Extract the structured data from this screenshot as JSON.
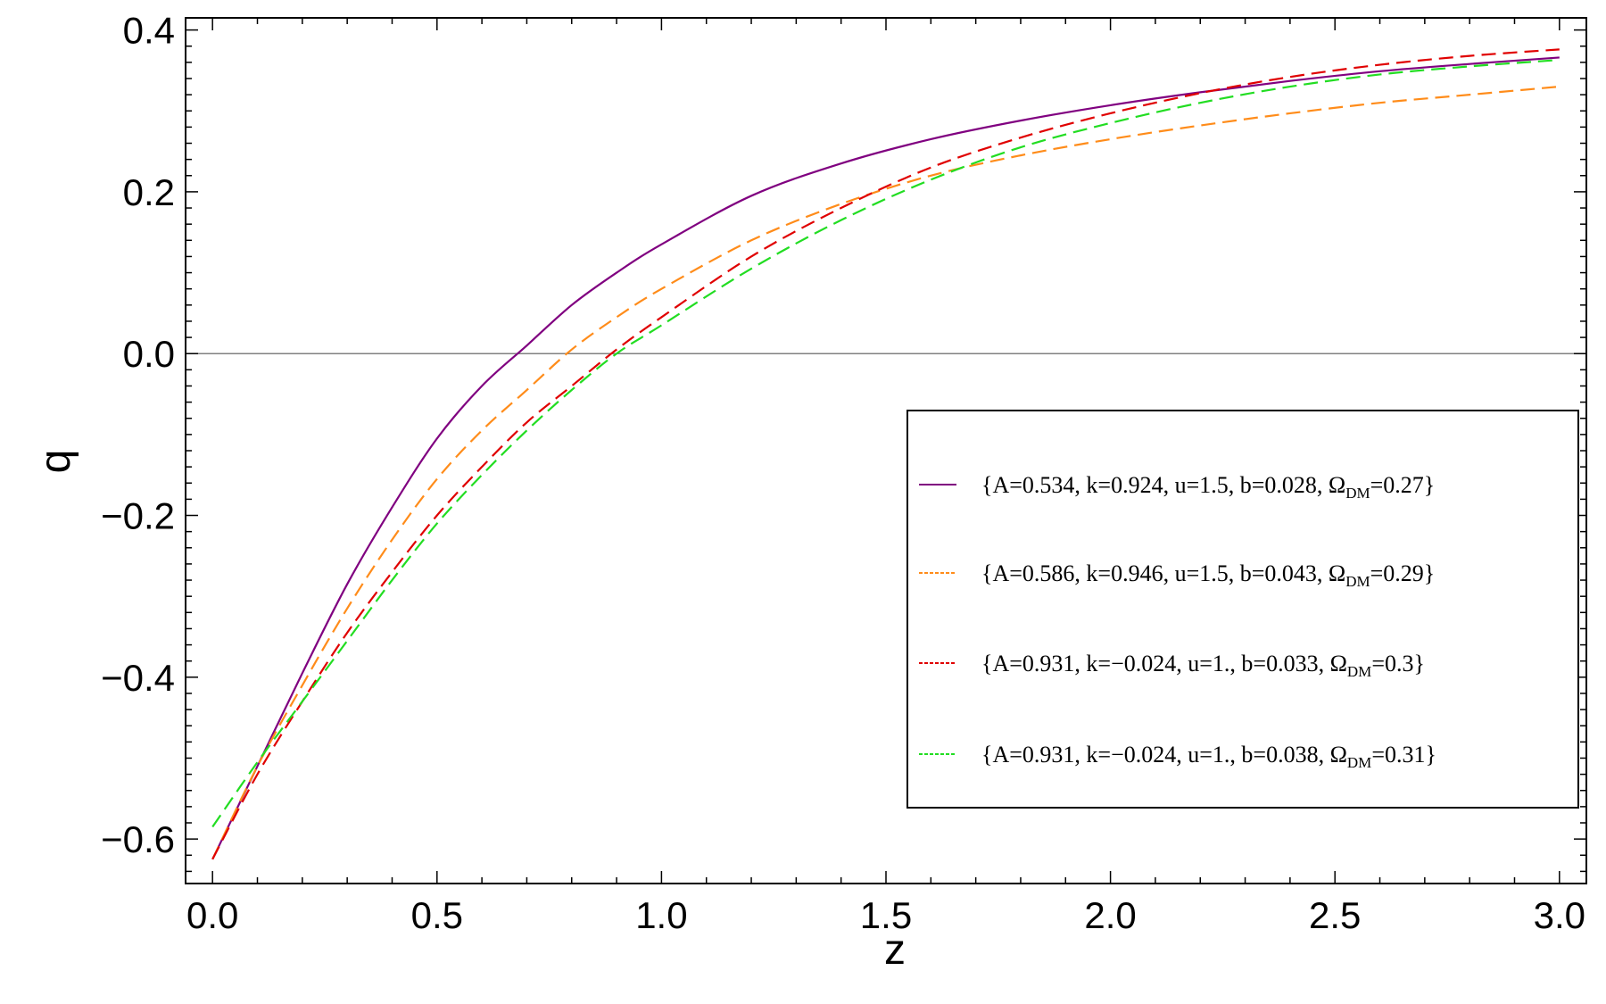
{
  "chart_data": {
    "type": "line",
    "xlabel": "z",
    "ylabel": "q",
    "xlim": [
      -0.06,
      3.06
    ],
    "ylim": [
      -0.655,
      0.415
    ],
    "x_ticks": [
      0.0,
      0.5,
      1.0,
      1.5,
      2.0,
      2.5,
      3.0
    ],
    "x_tick_labels": [
      "0.0",
      "0.5",
      "1.0",
      "1.5",
      "2.0",
      "2.5",
      "3.0"
    ],
    "y_ticks": [
      -0.6,
      -0.4,
      -0.2,
      0.0,
      0.2,
      0.4
    ],
    "y_tick_labels": [
      "−0.6",
      "−0.4",
      "−0.2",
      "0.0",
      "0.2",
      "0.4"
    ],
    "reference_line": {
      "y": 0.0,
      "color": "#808080"
    },
    "grid": false,
    "legend_position": "right",
    "series": [
      {
        "legend": {
          "prefix": "{A=0.534, k=0.924, u=1.5, b=0.028, Ω",
          "subscript": "DM",
          "suffix": "=0.27}"
        },
        "color": "#800080",
        "dash": "solid",
        "x": [
          0.0,
          0.1,
          0.2,
          0.3,
          0.4,
          0.5,
          0.6,
          0.7,
          0.8,
          0.9,
          1.0,
          1.2,
          1.4,
          1.6,
          1.8,
          2.0,
          2.2,
          2.4,
          2.6,
          2.8,
          3.0
        ],
        "y": [
          -0.625,
          -0.51,
          -0.395,
          -0.285,
          -0.19,
          -0.105,
          -0.04,
          0.01,
          0.06,
          0.1,
          0.135,
          0.195,
          0.235,
          0.265,
          0.288,
          0.307,
          0.323,
          0.337,
          0.349,
          0.358,
          0.366
        ]
      },
      {
        "legend": {
          "prefix": "{A=0.586, k=0.946, u=1.5, b=0.043, Ω",
          "subscript": "DM",
          "suffix": "=0.29}"
        },
        "color": "#FF8C1A",
        "dash": "dashed",
        "x": [
          0.0,
          0.1,
          0.2,
          0.3,
          0.4,
          0.5,
          0.6,
          0.7,
          0.8,
          0.9,
          1.0,
          1.2,
          1.4,
          1.6,
          1.8,
          2.0,
          2.2,
          2.4,
          2.6,
          2.8,
          3.0
        ],
        "y": [
          -0.625,
          -0.51,
          -0.41,
          -0.315,
          -0.23,
          -0.155,
          -0.095,
          -0.045,
          0.005,
          0.045,
          0.08,
          0.14,
          0.185,
          0.22,
          0.245,
          0.265,
          0.282,
          0.297,
          0.31,
          0.32,
          0.33
        ]
      },
      {
        "legend": {
          "prefix": "{A=0.931, k=−0.024, u=1., b=0.033, Ω",
          "subscript": "DM",
          "suffix": "=0.3}"
        },
        "color": "#E00000",
        "dash": "dashed",
        "x": [
          0.0,
          0.1,
          0.2,
          0.3,
          0.4,
          0.5,
          0.6,
          0.7,
          0.8,
          0.9,
          1.0,
          1.2,
          1.4,
          1.6,
          1.8,
          2.0,
          2.2,
          2.4,
          2.6,
          2.8,
          3.0
        ],
        "y": [
          -0.625,
          -0.52,
          -0.43,
          -0.345,
          -0.27,
          -0.2,
          -0.14,
          -0.085,
          -0.04,
          0.005,
          0.045,
          0.12,
          0.18,
          0.23,
          0.267,
          0.297,
          0.322,
          0.342,
          0.357,
          0.368,
          0.376
        ]
      },
      {
        "legend": {
          "prefix": "{A=0.931, k=−0.024, u=1., b=0.038, Ω",
          "subscript": "DM",
          "suffix": "=0.31}"
        },
        "color": "#22DD22",
        "dash": "dashed",
        "x": [
          0.0,
          0.1,
          0.2,
          0.3,
          0.4,
          0.5,
          0.6,
          0.7,
          0.8,
          0.9,
          1.0,
          1.2,
          1.4,
          1.6,
          1.8,
          2.0,
          2.2,
          2.4,
          2.6,
          2.8,
          3.0
        ],
        "y": [
          -0.585,
          -0.505,
          -0.43,
          -0.355,
          -0.28,
          -0.21,
          -0.15,
          -0.095,
          -0.045,
          0.0,
          0.035,
          0.105,
          0.165,
          0.215,
          0.255,
          0.285,
          0.31,
          0.33,
          0.345,
          0.355,
          0.363
        ]
      }
    ]
  }
}
